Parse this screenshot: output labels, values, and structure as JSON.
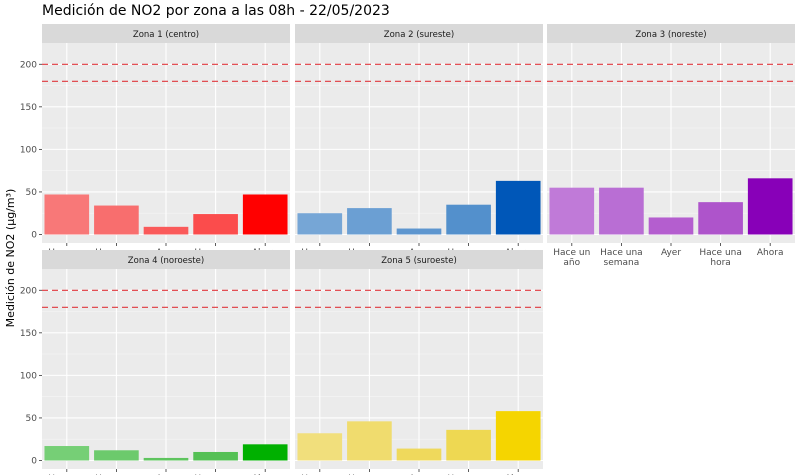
{
  "chart_data": {
    "type": "bar",
    "title": "Medición de NO2 por zona a las 08h - 22/05/2023",
    "ylabel": "Medición de NO2 (µg/m³)",
    "xlabel": "",
    "ylim": [
      -10,
      225
    ],
    "yticks": [
      0,
      50,
      100,
      150,
      200
    ],
    "reference_lines": [
      200,
      180
    ],
    "reference_line_color": "#e0393e",
    "panel_background": "#ebebeb",
    "strip_background": "#d9d9d9",
    "categories": [
      [
        "Hace un",
        "año"
      ],
      [
        "Hace una",
        "semana"
      ],
      [
        "Ayer"
      ],
      [
        "Hace una",
        "hora"
      ],
      [
        "Ahora"
      ]
    ],
    "panels": [
      {
        "name": "Zona 1 (centro)",
        "values": [
          47,
          34,
          9,
          24,
          47
        ],
        "colors": [
          "#f87878",
          "#f86e6e",
          "#fa5a5a",
          "#fb4c4c",
          "#ff0000"
        ]
      },
      {
        "name": "Zona 2 (sureste)",
        "values": [
          25,
          31,
          7,
          35,
          63
        ],
        "colors": [
          "#76a6d6",
          "#6b9fd3",
          "#5e96cf",
          "#5390cc",
          "#0057b8"
        ]
      },
      {
        "name": "Zona 3 (noreste)",
        "values": [
          55,
          55,
          20,
          38,
          66
        ],
        "colors": [
          "#c07ad8",
          "#b96ed4",
          "#b45ecf",
          "#ae54cb",
          "#8800b8"
        ]
      },
      {
        "name": "Zona 4 (noroeste)",
        "values": [
          17,
          12,
          3,
          10,
          19
        ],
        "colors": [
          "#76cf76",
          "#6cca6c",
          "#5ec45e",
          "#55c055",
          "#00b000"
        ]
      },
      {
        "name": "Zona 5 (suroeste)",
        "values": [
          32,
          46,
          14,
          36,
          58
        ],
        "colors": [
          "#f1df7c",
          "#f0dc6e",
          "#efd95c",
          "#eed852",
          "#f5d500"
        ]
      }
    ]
  }
}
